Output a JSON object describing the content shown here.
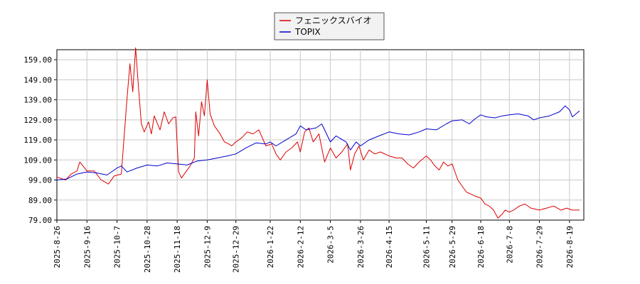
{
  "chart_data": {
    "type": "line",
    "grid": true,
    "legend_position": "top-center",
    "ylim": [
      79,
      164
    ],
    "yticks": [
      "79.00",
      "89.00",
      "99.00",
      "109.00",
      "119.00",
      "129.00",
      "139.00",
      "149.00",
      "159.00"
    ],
    "x_range": [
      "2025-8-26",
      "2026-8-29"
    ],
    "xticks": [
      "2025-8-26",
      "2025-9-16",
      "2025-10-7",
      "2025-10-28",
      "2025-11-18",
      "2025-12-9",
      "2025-12-29",
      "2026-1-22",
      "2026-2-12",
      "2026-3-5",
      "2026-3-26",
      "2026-4-15",
      "2026-5-11",
      "2026-5-29",
      "2026-6-18",
      "2026-7-8",
      "2026-7-29",
      "2026-8-19"
    ],
    "series": [
      {
        "name": "フェニックスバイオ",
        "color": "#dd0000",
        "points": [
          [
            "2025-8-26",
            100.5
          ],
          [
            "2025-9-1",
            99.0
          ],
          [
            "2025-9-5",
            102.0
          ],
          [
            "2025-9-9",
            103.5
          ],
          [
            "2025-9-11",
            108.0
          ],
          [
            "2025-9-16",
            103.5
          ],
          [
            "2025-9-21",
            103.5
          ],
          [
            "2025-9-26",
            99.0
          ],
          [
            "2025-10-1",
            97.0
          ],
          [
            "2025-10-5",
            101.0
          ],
          [
            "2025-10-10",
            102.0
          ],
          [
            "2025-10-14",
            140.0
          ],
          [
            "2025-10-16",
            157.0
          ],
          [
            "2025-10-18",
            143.0
          ],
          [
            "2025-10-20",
            165.0
          ],
          [
            "2025-10-22",
            145.0
          ],
          [
            "2025-10-24",
            127.0
          ],
          [
            "2025-10-26",
            123.0
          ],
          [
            "2025-10-29",
            128.0
          ],
          [
            "2025-10-31",
            122.0
          ],
          [
            "2025-11-2",
            131.0
          ],
          [
            "2025-11-6",
            124.0
          ],
          [
            "2025-11-9",
            133.0
          ],
          [
            "2025-11-12",
            127.0
          ],
          [
            "2025-11-15",
            130.0
          ],
          [
            "2025-11-17",
            130.5
          ],
          [
            "2025-11-19",
            103.0
          ],
          [
            "2025-11-21",
            100.0
          ],
          [
            "2025-11-24",
            103.0
          ],
          [
            "2025-11-27",
            106.0
          ],
          [
            "2025-11-30",
            110.0
          ],
          [
            "2025-12-1",
            133.0
          ],
          [
            "2025-12-3",
            121.0
          ],
          [
            "2025-12-5",
            138.0
          ],
          [
            "2025-12-7",
            131.0
          ],
          [
            "2025-12-9",
            149.0
          ],
          [
            "2025-12-11",
            132.0
          ],
          [
            "2025-12-14",
            126.0
          ],
          [
            "2025-12-18",
            122.0
          ],
          [
            "2025-12-21",
            118.0
          ],
          [
            "2025-12-24",
            117.0
          ],
          [
            "2025-12-26",
            116.0
          ],
          [
            "2025-12-29",
            118.0
          ],
          [
            "2026-1-2",
            120.0
          ],
          [
            "2026-1-6",
            123.0
          ],
          [
            "2026-1-10",
            122.0
          ],
          [
            "2026-1-14",
            124.0
          ],
          [
            "2026-1-19",
            116.0
          ],
          [
            "2026-1-23",
            117.0
          ],
          [
            "2026-1-26",
            112.0
          ],
          [
            "2026-1-29",
            109.0
          ],
          [
            "2026-2-2",
            113.0
          ],
          [
            "2026-2-6",
            115.0
          ],
          [
            "2026-2-10",
            118.0
          ],
          [
            "2026-2-12",
            113.0
          ],
          [
            "2026-2-15",
            123.0
          ],
          [
            "2026-2-18",
            125.0
          ],
          [
            "2026-2-21",
            118.0
          ],
          [
            "2026-2-25",
            122.0
          ],
          [
            "2026-3-1",
            108.0
          ],
          [
            "2026-3-5",
            115.0
          ],
          [
            "2026-3-9",
            110.0
          ],
          [
            "2026-3-13",
            113.0
          ],
          [
            "2026-3-17",
            117.0
          ],
          [
            "2026-3-19",
            104.0
          ],
          [
            "2026-3-22",
            112.0
          ],
          [
            "2026-3-25",
            116.0
          ],
          [
            "2026-3-28",
            109.0
          ],
          [
            "2026-4-1",
            114.0
          ],
          [
            "2026-4-5",
            112.0
          ],
          [
            "2026-4-9",
            113.0
          ],
          [
            "2026-4-15",
            111.0
          ],
          [
            "2026-4-20",
            110.0
          ],
          [
            "2026-4-24",
            110.0
          ],
          [
            "2026-4-28",
            107.0
          ],
          [
            "2026-5-2",
            105.0
          ],
          [
            "2026-5-6",
            108.0
          ],
          [
            "2026-5-11",
            111.0
          ],
          [
            "2026-5-14",
            109.0
          ],
          [
            "2026-5-17",
            106.0
          ],
          [
            "2026-5-20",
            104.0
          ],
          [
            "2026-5-23",
            108.0
          ],
          [
            "2026-5-26",
            106.0
          ],
          [
            "2026-5-29",
            107.0
          ],
          [
            "2026-6-2",
            99.0
          ],
          [
            "2026-6-5",
            96.0
          ],
          [
            "2026-6-8",
            93.0
          ],
          [
            "2026-6-11",
            92.0
          ],
          [
            "2026-6-14",
            91.0
          ],
          [
            "2026-6-18",
            90.0
          ],
          [
            "2026-6-21",
            87.0
          ],
          [
            "2026-6-24",
            86.0
          ],
          [
            "2026-6-27",
            84.0
          ],
          [
            "2026-6-30",
            80.0
          ],
          [
            "2026-7-3",
            82.0
          ],
          [
            "2026-7-5",
            84.0
          ],
          [
            "2026-7-8",
            83.0
          ],
          [
            "2026-7-11",
            84.0
          ],
          [
            "2026-7-15",
            86.0
          ],
          [
            "2026-7-19",
            87.0
          ],
          [
            "2026-7-23",
            85.0
          ],
          [
            "2026-7-29",
            84.0
          ],
          [
            "2026-8-3",
            85.0
          ],
          [
            "2026-8-8",
            86.0
          ],
          [
            "2026-8-13",
            84.0
          ],
          [
            "2026-8-17",
            85.0
          ],
          [
            "2026-8-21",
            84.0
          ],
          [
            "2026-8-26",
            84.0
          ]
        ]
      },
      {
        "name": "TOPIX",
        "color": "#0000cc",
        "points": [
          [
            "2025-8-26",
            99.0
          ],
          [
            "2025-9-2",
            99.5
          ],
          [
            "2025-9-9",
            102.0
          ],
          [
            "2025-9-16",
            103.0
          ],
          [
            "2025-9-23",
            102.5
          ],
          [
            "2025-9-30",
            101.5
          ],
          [
            "2025-10-7",
            105.0
          ],
          [
            "2025-10-10",
            106.0
          ],
          [
            "2025-10-14",
            103.0
          ],
          [
            "2025-10-21",
            105.0
          ],
          [
            "2025-10-28",
            106.5
          ],
          [
            "2025-11-4",
            106.0
          ],
          [
            "2025-11-11",
            107.5
          ],
          [
            "2025-11-18",
            107.0
          ],
          [
            "2025-11-25",
            106.5
          ],
          [
            "2025-12-2",
            108.5
          ],
          [
            "2025-12-9",
            109.0
          ],
          [
            "2025-12-16",
            110.0
          ],
          [
            "2025-12-23",
            111.0
          ],
          [
            "2025-12-29",
            112.0
          ],
          [
            "2026-1-5",
            115.0
          ],
          [
            "2026-1-12",
            117.5
          ],
          [
            "2026-1-19",
            117.0
          ],
          [
            "2026-1-22",
            118.0
          ],
          [
            "2026-1-26",
            116.0
          ],
          [
            "2026-2-2",
            119.0
          ],
          [
            "2026-2-9",
            122.0
          ],
          [
            "2026-2-12",
            126.0
          ],
          [
            "2026-2-16",
            124.0
          ],
          [
            "2026-2-23",
            125.0
          ],
          [
            "2026-2-27",
            127.0
          ],
          [
            "2026-3-5",
            118.0
          ],
          [
            "2026-3-9",
            121.0
          ],
          [
            "2026-3-16",
            118.0
          ],
          [
            "2026-3-19",
            114.0
          ],
          [
            "2026-3-23",
            118.0
          ],
          [
            "2026-3-26",
            116.0
          ],
          [
            "2026-4-1",
            119.0
          ],
          [
            "2026-4-8",
            121.0
          ],
          [
            "2026-4-15",
            123.0
          ],
          [
            "2026-4-22",
            122.0
          ],
          [
            "2026-4-29",
            121.5
          ],
          [
            "2026-5-6",
            123.0
          ],
          [
            "2026-5-11",
            124.5
          ],
          [
            "2026-5-18",
            124.0
          ],
          [
            "2026-5-25",
            127.0
          ],
          [
            "2026-5-29",
            128.5
          ],
          [
            "2026-6-5",
            129.0
          ],
          [
            "2026-6-10",
            127.0
          ],
          [
            "2026-6-14",
            129.5
          ],
          [
            "2026-6-18",
            131.5
          ],
          [
            "2026-6-22",
            130.5
          ],
          [
            "2026-6-28",
            130.0
          ],
          [
            "2026-7-3",
            131.0
          ],
          [
            "2026-7-8",
            131.5
          ],
          [
            "2026-7-14",
            132.0
          ],
          [
            "2026-7-21",
            131.0
          ],
          [
            "2026-7-25",
            129.0
          ],
          [
            "2026-7-29",
            130.0
          ],
          [
            "2026-8-5",
            131.0
          ],
          [
            "2026-8-12",
            133.0
          ],
          [
            "2026-8-16",
            136.0
          ],
          [
            "2026-8-19",
            134.0
          ],
          [
            "2026-8-21",
            130.5
          ],
          [
            "2026-8-26",
            133.5
          ]
        ]
      }
    ]
  }
}
